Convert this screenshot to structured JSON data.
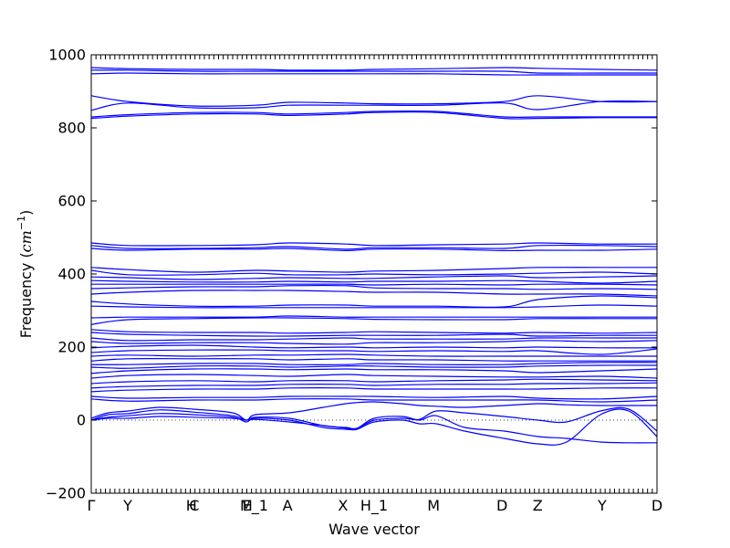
{
  "chart_data": {
    "type": "line",
    "xlabel": "Wave vector",
    "ylabel_text": "Frequency (",
    "ylabel_unit": "cm",
    "ylabel_exp": "−1",
    "ylabel_close": ")",
    "ylim": [
      -200,
      1000
    ],
    "yticks": [
      -200,
      0,
      200,
      400,
      600,
      800,
      1000
    ],
    "xlim": [
      0,
      100
    ],
    "grid": false,
    "legend": "none",
    "line_color": "#0000ff",
    "zero_line": 0,
    "high_symmetry_points": [
      {
        "label": "Γ",
        "x": 0.0
      },
      {
        "label": "Y",
        "x": 6.45
      },
      {
        "label": "H",
        "x": 17.7
      },
      {
        "label": "C",
        "x": 18.2
      },
      {
        "label": "M",
        "x": 27.4
      },
      {
        "label": "E_1",
        "x": 29.0
      },
      {
        "label": "A",
        "x": 34.7
      },
      {
        "label": "X",
        "x": 44.5
      },
      {
        "label": "H_1",
        "x": 50.0
      },
      {
        "label": "M",
        "x": 60.5
      },
      {
        "label": "D",
        "x": 72.6
      },
      {
        "label": "Z",
        "x": 78.9
      },
      {
        "label": "Y",
        "x": 90.3
      },
      {
        "label": "D",
        "x": 100.0
      }
    ],
    "series": [
      {
        "x": [
          0,
          6.5,
          18,
          29,
          35,
          45,
          50,
          61,
          73,
          79,
          90,
          100
        ],
        "y": [
          965,
          962,
          960,
          960,
          958,
          958,
          960,
          962,
          965,
          963,
          960,
          958
        ]
      },
      {
        "x": [
          0,
          6.5,
          18,
          29,
          35,
          45,
          50,
          61,
          73,
          79,
          90,
          100
        ],
        "y": [
          958,
          958,
          955,
          955,
          955,
          955,
          955,
          955,
          955,
          950,
          950,
          950
        ]
      },
      {
        "x": [
          0,
          6.5,
          18,
          29,
          35,
          45,
          50,
          61,
          73,
          79,
          90,
          100
        ],
        "y": [
          948,
          950,
          948,
          948,
          948,
          948,
          948,
          948,
          945,
          945,
          945,
          945
        ]
      },
      {
        "x": [
          0,
          6.5,
          18,
          29,
          35,
          45,
          50,
          61,
          73,
          79,
          90,
          100
        ],
        "y": [
          888,
          872,
          860,
          862,
          870,
          868,
          866,
          866,
          872,
          888,
          872,
          872
        ]
      },
      {
        "x": [
          0,
          6.5,
          18,
          29,
          35,
          45,
          50,
          61,
          73,
          79,
          90,
          100
        ],
        "y": [
          848,
          868,
          855,
          855,
          862,
          862,
          862,
          862,
          868,
          850,
          872,
          872
        ]
      },
      {
        "x": [
          0,
          6.5,
          18,
          29,
          35,
          45,
          50,
          61,
          73,
          79,
          90,
          100
        ],
        "y": [
          830,
          836,
          842,
          842,
          838,
          842,
          845,
          845,
          830,
          830,
          830,
          830
        ]
      },
      {
        "x": [
          0,
          6.5,
          18,
          29,
          35,
          45,
          50,
          61,
          73,
          79,
          90,
          100
        ],
        "y": [
          826,
          832,
          838,
          838,
          834,
          838,
          842,
          842,
          826,
          826,
          828,
          828
        ]
      },
      {
        "x": [
          0,
          6.5,
          18,
          29,
          35,
          45,
          50,
          61,
          73,
          79,
          90,
          100
        ],
        "y": [
          485,
          478,
          478,
          480,
          485,
          482,
          478,
          480,
          482,
          485,
          482,
          482
        ]
      },
      {
        "x": [
          0,
          6.5,
          18,
          29,
          35,
          45,
          50,
          61,
          73,
          79,
          90,
          100
        ],
        "y": [
          478,
          470,
          470,
          472,
          475,
          468,
          472,
          472,
          470,
          478,
          478,
          475
        ]
      },
      {
        "x": [
          0,
          6.5,
          18,
          29,
          35,
          45,
          50,
          61,
          73,
          79,
          90,
          100
        ],
        "y": [
          470,
          465,
          468,
          468,
          470,
          464,
          468,
          468,
          464,
          465,
          465,
          468
        ]
      },
      {
        "x": [
          0,
          6.5,
          18,
          29,
          35,
          45,
          50,
          61,
          73,
          79,
          90,
          100
        ],
        "y": [
          418,
          412,
          405,
          410,
          408,
          405,
          408,
          410,
          415,
          418,
          418,
          418
        ]
      },
      {
        "x": [
          0,
          6.5,
          18,
          29,
          35,
          45,
          50,
          61,
          73,
          79,
          90,
          100
        ],
        "y": [
          410,
          398,
          398,
          402,
          398,
          398,
          400,
          398,
          400,
          402,
          405,
          400
        ]
      },
      {
        "x": [
          0,
          6.5,
          18,
          29,
          35,
          45,
          50,
          61,
          73,
          79,
          90,
          100
        ],
        "y": [
          392,
          390,
          385,
          388,
          390,
          388,
          388,
          392,
          395,
          390,
          392,
          395
        ]
      },
      {
        "x": [
          0,
          6.5,
          18,
          29,
          35,
          45,
          50,
          61,
          73,
          79,
          90,
          100
        ],
        "y": [
          382,
          380,
          378,
          378,
          380,
          378,
          380,
          380,
          382,
          380,
          375,
          380
        ]
      },
      {
        "x": [
          0,
          6.5,
          18,
          29,
          35,
          45,
          50,
          61,
          73,
          79,
          90,
          100
        ],
        "y": [
          372,
          372,
          372,
          372,
          372,
          372,
          370,
          372,
          370,
          372,
          372,
          370
        ]
      },
      {
        "x": [
          0,
          6.5,
          18,
          29,
          35,
          45,
          50,
          61,
          73,
          79,
          90,
          100
        ],
        "y": [
          360,
          362,
          365,
          365,
          368,
          368,
          362,
          360,
          360,
          358,
          360,
          358
        ]
      },
      {
        "x": [
          0,
          6.5,
          18,
          29,
          35,
          45,
          50,
          61,
          73,
          79,
          90,
          100
        ],
        "y": [
          345,
          350,
          355,
          355,
          355,
          352,
          350,
          350,
          345,
          345,
          345,
          340
        ]
      },
      {
        "x": [
          0,
          6.5,
          18,
          29,
          35,
          45,
          50,
          61,
          73,
          79,
          90,
          100
        ],
        "y": [
          325,
          318,
          312,
          312,
          315,
          315,
          312,
          312,
          310,
          330,
          340,
          335
        ]
      },
      {
        "x": [
          0,
          6.5,
          18,
          29,
          35,
          45,
          50,
          61,
          73,
          79,
          90,
          100
        ],
        "y": [
          312,
          310,
          308,
          308,
          308,
          308,
          308,
          308,
          308,
          310,
          315,
          312
        ]
      },
      {
        "x": [
          0,
          6.5,
          18,
          29,
          35,
          45,
          50,
          61,
          73,
          79,
          90,
          100
        ],
        "y": [
          280,
          282,
          282,
          282,
          285,
          282,
          282,
          282,
          282,
          282,
          282,
          282
        ]
      },
      {
        "x": [
          0,
          6.5,
          18,
          29,
          35,
          45,
          50,
          61,
          73,
          79,
          90,
          100
        ],
        "y": [
          262,
          275,
          278,
          280,
          280,
          278,
          276,
          275,
          275,
          278,
          278,
          278
        ]
      },
      {
        "x": [
          0,
          6.5,
          18,
          29,
          35,
          45,
          50,
          61,
          73,
          79,
          90,
          100
        ],
        "y": [
          248,
          242,
          240,
          240,
          238,
          240,
          242,
          240,
          238,
          240,
          238,
          240
        ]
      },
      {
        "x": [
          0,
          6.5,
          18,
          29,
          35,
          45,
          50,
          61,
          73,
          79,
          90,
          100
        ],
        "y": [
          240,
          235,
          232,
          230,
          230,
          232,
          232,
          232,
          235,
          230,
          232,
          232
        ]
      },
      {
        "x": [
          0,
          6.5,
          18,
          29,
          35,
          45,
          50,
          61,
          73,
          79,
          90,
          100
        ],
        "y": [
          225,
          218,
          220,
          220,
          222,
          225,
          222,
          222,
          222,
          225,
          225,
          225
        ]
      },
      {
        "x": [
          0,
          6.5,
          18,
          29,
          35,
          45,
          50,
          61,
          73,
          79,
          90,
          100
        ],
        "y": [
          215,
          210,
          212,
          212,
          210,
          208,
          212,
          212,
          215,
          218,
          215,
          218
        ]
      },
      {
        "x": [
          0,
          6.5,
          18,
          29,
          35,
          45,
          50,
          61,
          73,
          79,
          90,
          100
        ],
        "y": [
          198,
          202,
          205,
          200,
          198,
          200,
          198,
          200,
          198,
          200,
          198,
          198
        ]
      },
      {
        "x": [
          0,
          6.5,
          18,
          29,
          35,
          45,
          50,
          61,
          73,
          79,
          90,
          100
        ],
        "y": [
          185,
          190,
          192,
          192,
          190,
          190,
          188,
          190,
          188,
          190,
          180,
          195
        ]
      },
      {
        "x": [
          0,
          6.5,
          18,
          29,
          35,
          45,
          50,
          61,
          73,
          79,
          90,
          100
        ],
        "y": [
          175,
          178,
          175,
          178,
          178,
          180,
          178,
          175,
          175,
          175,
          175,
          175
        ]
      },
      {
        "x": [
          0,
          6.5,
          18,
          29,
          35,
          45,
          50,
          61,
          73,
          79,
          90,
          100
        ],
        "y": [
          162,
          168,
          168,
          168,
          165,
          168,
          165,
          165,
          162,
          162,
          162,
          162
        ]
      },
      {
        "x": [
          0,
          6.5,
          18,
          29,
          35,
          45,
          50,
          61,
          73,
          79,
          90,
          100
        ],
        "y": [
          152,
          152,
          155,
          155,
          152,
          152,
          155,
          152,
          152,
          155,
          158,
          158
        ]
      },
      {
        "x": [
          0,
          6.5,
          18,
          29,
          35,
          45,
          50,
          61,
          73,
          79,
          90,
          100
        ],
        "y": [
          145,
          142,
          148,
          148,
          145,
          148,
          148,
          145,
          145,
          148,
          150,
          150
        ]
      },
      {
        "x": [
          0,
          6.5,
          18,
          29,
          35,
          45,
          50,
          61,
          73,
          79,
          90,
          100
        ],
        "y": [
          128,
          135,
          140,
          140,
          138,
          140,
          138,
          138,
          135,
          130,
          135,
          140
        ]
      },
      {
        "x": [
          0,
          6.5,
          18,
          29,
          35,
          45,
          50,
          61,
          73,
          79,
          90,
          100
        ],
        "y": [
          115,
          122,
          125,
          122,
          120,
          125,
          122,
          120,
          118,
          118,
          120,
          115
        ]
      },
      {
        "x": [
          0,
          6.5,
          18,
          29,
          35,
          45,
          50,
          61,
          73,
          79,
          90,
          100
        ],
        "y": [
          100,
          105,
          108,
          105,
          108,
          108,
          105,
          108,
          110,
          112,
          110,
          108
        ]
      },
      {
        "x": [
          0,
          6.5,
          18,
          29,
          35,
          45,
          50,
          61,
          73,
          79,
          90,
          100
        ],
        "y": [
          88,
          92,
          95,
          95,
          98,
          98,
          95,
          98,
          98,
          100,
          100,
          102
        ]
      },
      {
        "x": [
          0,
          6.5,
          18,
          29,
          35,
          45,
          50,
          61,
          73,
          79,
          90,
          100
        ],
        "y": [
          78,
          82,
          85,
          85,
          88,
          88,
          85,
          85,
          85,
          85,
          88,
          88
        ]
      },
      {
        "x": [
          0,
          6.5,
          18,
          29,
          35,
          45,
          50,
          61,
          73,
          79,
          90,
          100
        ],
        "y": [
          65,
          60,
          62,
          62,
          65,
          65,
          65,
          62,
          65,
          60,
          58,
          65
        ]
      },
      {
        "x": [
          0,
          6.5,
          18,
          29,
          35,
          45,
          50,
          61,
          73,
          79,
          90,
          100
        ],
        "y": [
          58,
          52,
          55,
          55,
          58,
          58,
          55,
          55,
          55,
          55,
          50,
          55
        ]
      },
      {
        "x": [
          0,
          3,
          6.5,
          12,
          18,
          25,
          27.4,
          29,
          35,
          41,
          45,
          47,
          50,
          55,
          58,
          61,
          66,
          73,
          79,
          84,
          90,
          95,
          100
        ],
        "y": [
          5,
          20,
          25,
          35,
          30,
          20,
          0,
          15,
          20,
          35,
          45,
          48,
          50,
          45,
          40,
          38,
          35,
          40,
          45,
          42,
          40,
          40,
          40
        ]
      },
      {
        "x": [
          0,
          3,
          6.5,
          12,
          18,
          25,
          27.4,
          29,
          35,
          41,
          45,
          47,
          50,
          55,
          58,
          61,
          66,
          73,
          79,
          84,
          90,
          95,
          100
        ],
        "y": [
          0,
          15,
          18,
          28,
          22,
          12,
          0,
          8,
          5,
          -15,
          -20,
          -22,
          5,
          10,
          0,
          12,
          -20,
          -30,
          -45,
          -50,
          -60,
          -62,
          -62
        ]
      },
      {
        "x": [
          0,
          3,
          6.5,
          12,
          18,
          25,
          27.4,
          29,
          35,
          41,
          45,
          47,
          50,
          55,
          58,
          61,
          66,
          73,
          79,
          84,
          90,
          95,
          100
        ],
        "y": [
          0,
          8,
          12,
          18,
          15,
          8,
          -5,
          5,
          0,
          -20,
          -25,
          -25,
          -5,
          0,
          -10,
          -10,
          -30,
          -50,
          -65,
          -60,
          15,
          25,
          -45
        ]
      },
      {
        "x": [
          0,
          3,
          6.5,
          12,
          18,
          25,
          27.4,
          29,
          35,
          41,
          45,
          47,
          50,
          55,
          58,
          61,
          66,
          73,
          79,
          84,
          90,
          95,
          100
        ],
        "y": [
          0,
          5,
          5,
          10,
          8,
          5,
          0,
          2,
          -5,
          -15,
          -22,
          -24,
          0,
          5,
          2,
          25,
          20,
          10,
          0,
          -5,
          25,
          30,
          -30
        ]
      }
    ]
  }
}
